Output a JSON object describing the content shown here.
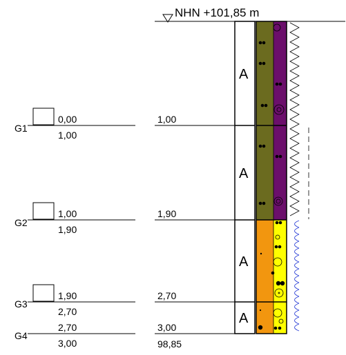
{
  "header": {
    "level": "NHN +101,85 m"
  },
  "samples": [
    {
      "id": "G1",
      "top": "0,00",
      "bottom": "1,00"
    },
    {
      "id": "G2",
      "top": "1,00",
      "bottom": "1,90"
    },
    {
      "id": "G3",
      "top": "1,90",
      "bottom": "2,70"
    },
    {
      "id": "G4",
      "top": "2,70",
      "bottom": "3,00"
    }
  ],
  "layers": [
    {
      "depth": "1,00",
      "sampling": "A",
      "color_main": "#6b6b1f",
      "color_side": "#6b0f6b"
    },
    {
      "depth": "1,90",
      "sampling": "A",
      "color_main": "#6b6b1f",
      "color_side": "#6b0f6b"
    },
    {
      "depth": "2,70",
      "sampling": "A",
      "color_main": "#f2960f",
      "color_side": "#ffff00"
    },
    {
      "depth": "3,00",
      "sampling": "A",
      "color_main": "#f2960f",
      "color_side": "#ffff00"
    }
  ],
  "base_level": "98,85",
  "colors": {
    "line": "#000000",
    "water_symbol": "#2b3fd6"
  }
}
